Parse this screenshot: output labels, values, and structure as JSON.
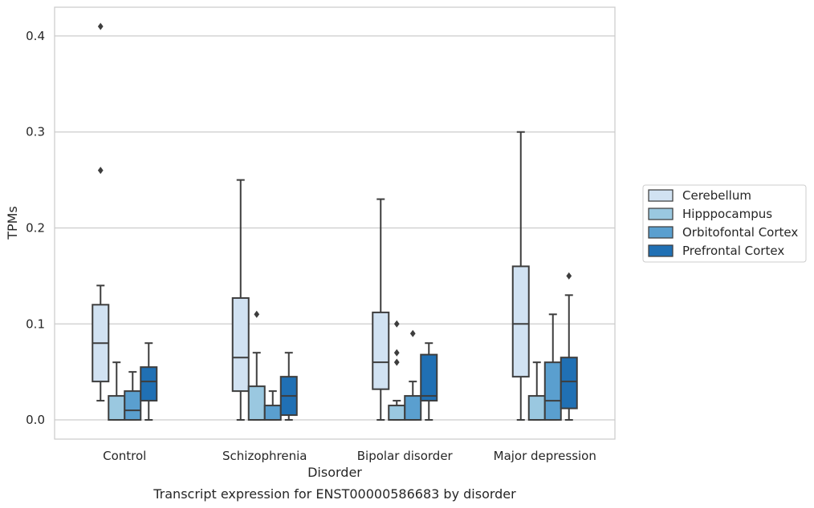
{
  "chart_data": {
    "type": "box",
    "title": "",
    "caption": "Transcript expression for ENST00000586683 by disorder",
    "xlabel": "Disorder",
    "ylabel": "TPMs",
    "ylim": [
      -0.02,
      0.43
    ],
    "yticks": [
      "0.0",
      "0.1",
      "0.2",
      "0.3",
      "0.4"
    ],
    "ytick_values": [
      0.0,
      0.1,
      0.2,
      0.3,
      0.4
    ],
    "grid": "horizontal",
    "legend_placement": "center-right-outside",
    "categories": [
      "Control",
      "Schizophrenia",
      "Bipolar disorder",
      "Major depression"
    ],
    "series": [
      {
        "name": "Cerebellum",
        "color": "#d1e2f2",
        "boxes": [
          {
            "whislo": 0.02,
            "q1": 0.04,
            "med": 0.08,
            "q3": 0.12,
            "whishi": 0.14,
            "fliers": [
              0.26,
              0.41
            ]
          },
          {
            "whislo": 0.0,
            "q1": 0.03,
            "med": 0.065,
            "q3": 0.127,
            "whishi": 0.25,
            "fliers": []
          },
          {
            "whislo": 0.0,
            "q1": 0.032,
            "med": 0.06,
            "q3": 0.112,
            "whishi": 0.23,
            "fliers": []
          },
          {
            "whislo": 0.0,
            "q1": 0.045,
            "med": 0.1,
            "q3": 0.16,
            "whishi": 0.3,
            "fliers": []
          }
        ]
      },
      {
        "name": "Hipppocampus",
        "color": "#9ac8e0",
        "boxes": [
          {
            "whislo": 0.0,
            "q1": 0.0,
            "med": 0.0,
            "q3": 0.025,
            "whishi": 0.06,
            "fliers": []
          },
          {
            "whislo": 0.0,
            "q1": 0.0,
            "med": 0.0,
            "q3": 0.035,
            "whishi": 0.07,
            "fliers": [
              0.11
            ]
          },
          {
            "whislo": 0.0,
            "q1": 0.0,
            "med": 0.0,
            "q3": 0.015,
            "whishi": 0.02,
            "fliers": [
              0.06,
              0.07,
              0.1
            ]
          },
          {
            "whislo": 0.0,
            "q1": 0.0,
            "med": 0.0,
            "q3": 0.025,
            "whishi": 0.06,
            "fliers": []
          }
        ]
      },
      {
        "name": "Orbitofontal Cortex",
        "color": "#5a9fcf",
        "boxes": [
          {
            "whislo": 0.0,
            "q1": 0.0,
            "med": 0.01,
            "q3": 0.03,
            "whishi": 0.05,
            "fliers": []
          },
          {
            "whislo": 0.0,
            "q1": 0.0,
            "med": 0.0,
            "q3": 0.015,
            "whishi": 0.03,
            "fliers": []
          },
          {
            "whislo": 0.0,
            "q1": 0.0,
            "med": 0.0,
            "q3": 0.025,
            "whishi": 0.04,
            "fliers": [
              0.09
            ]
          },
          {
            "whislo": 0.0,
            "q1": 0.0,
            "med": 0.02,
            "q3": 0.06,
            "whishi": 0.11,
            "fliers": []
          }
        ]
      },
      {
        "name": "Prefrontal Cortex",
        "color": "#2070b4",
        "boxes": [
          {
            "whislo": 0.0,
            "q1": 0.02,
            "med": 0.04,
            "q3": 0.055,
            "whishi": 0.08,
            "fliers": []
          },
          {
            "whislo": 0.0,
            "q1": 0.005,
            "med": 0.025,
            "q3": 0.045,
            "whishi": 0.07,
            "fliers": []
          },
          {
            "whislo": 0.0,
            "q1": 0.02,
            "med": 0.025,
            "q3": 0.068,
            "whishi": 0.08,
            "fliers": []
          },
          {
            "whislo": 0.0,
            "q1": 0.012,
            "med": 0.04,
            "q3": 0.065,
            "whishi": 0.13,
            "fliers": [
              0.15
            ]
          }
        ]
      }
    ]
  }
}
